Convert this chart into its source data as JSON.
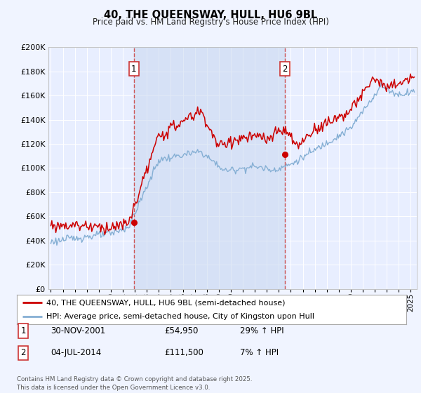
{
  "title": "40, THE QUEENSWAY, HULL, HU6 9BL",
  "subtitle": "Price paid vs. HM Land Registry's House Price Index (HPI)",
  "background_color": "#f0f4ff",
  "plot_bg_color": "#e8eeff",
  "grid_color": "#ffffff",
  "hpi_color": "#85afd4",
  "price_color": "#cc0000",
  "vline_color": "#cc0000",
  "sale1_date_num": 2001.917,
  "sale1_price": 54950,
  "sale2_date_num": 2014.5,
  "sale2_price": 111500,
  "ylim": [
    0,
    200000
  ],
  "xlim": [
    1994.8,
    2025.5
  ],
  "yticks": [
    0,
    20000,
    40000,
    60000,
    80000,
    100000,
    120000,
    140000,
    160000,
    180000,
    200000
  ],
  "ytick_labels": [
    "£0",
    "£20K",
    "£40K",
    "£60K",
    "£80K",
    "£100K",
    "£120K",
    "£140K",
    "£160K",
    "£180K",
    "£200K"
  ],
  "legend_label_price": "40, THE QUEENSWAY, HULL, HU6 9BL (semi-detached house)",
  "legend_label_hpi": "HPI: Average price, semi-detached house, City of Kingston upon Hull",
  "annotation1_date": "30-NOV-2001",
  "annotation1_price": "£54,950",
  "annotation1_hpi": "29% ↑ HPI",
  "annotation2_date": "04-JUL-2014",
  "annotation2_price": "£111,500",
  "annotation2_hpi": "7% ↑ HPI",
  "footer": "Contains HM Land Registry data © Crown copyright and database right 2025.\nThis data is licensed under the Open Government Licence v3.0."
}
